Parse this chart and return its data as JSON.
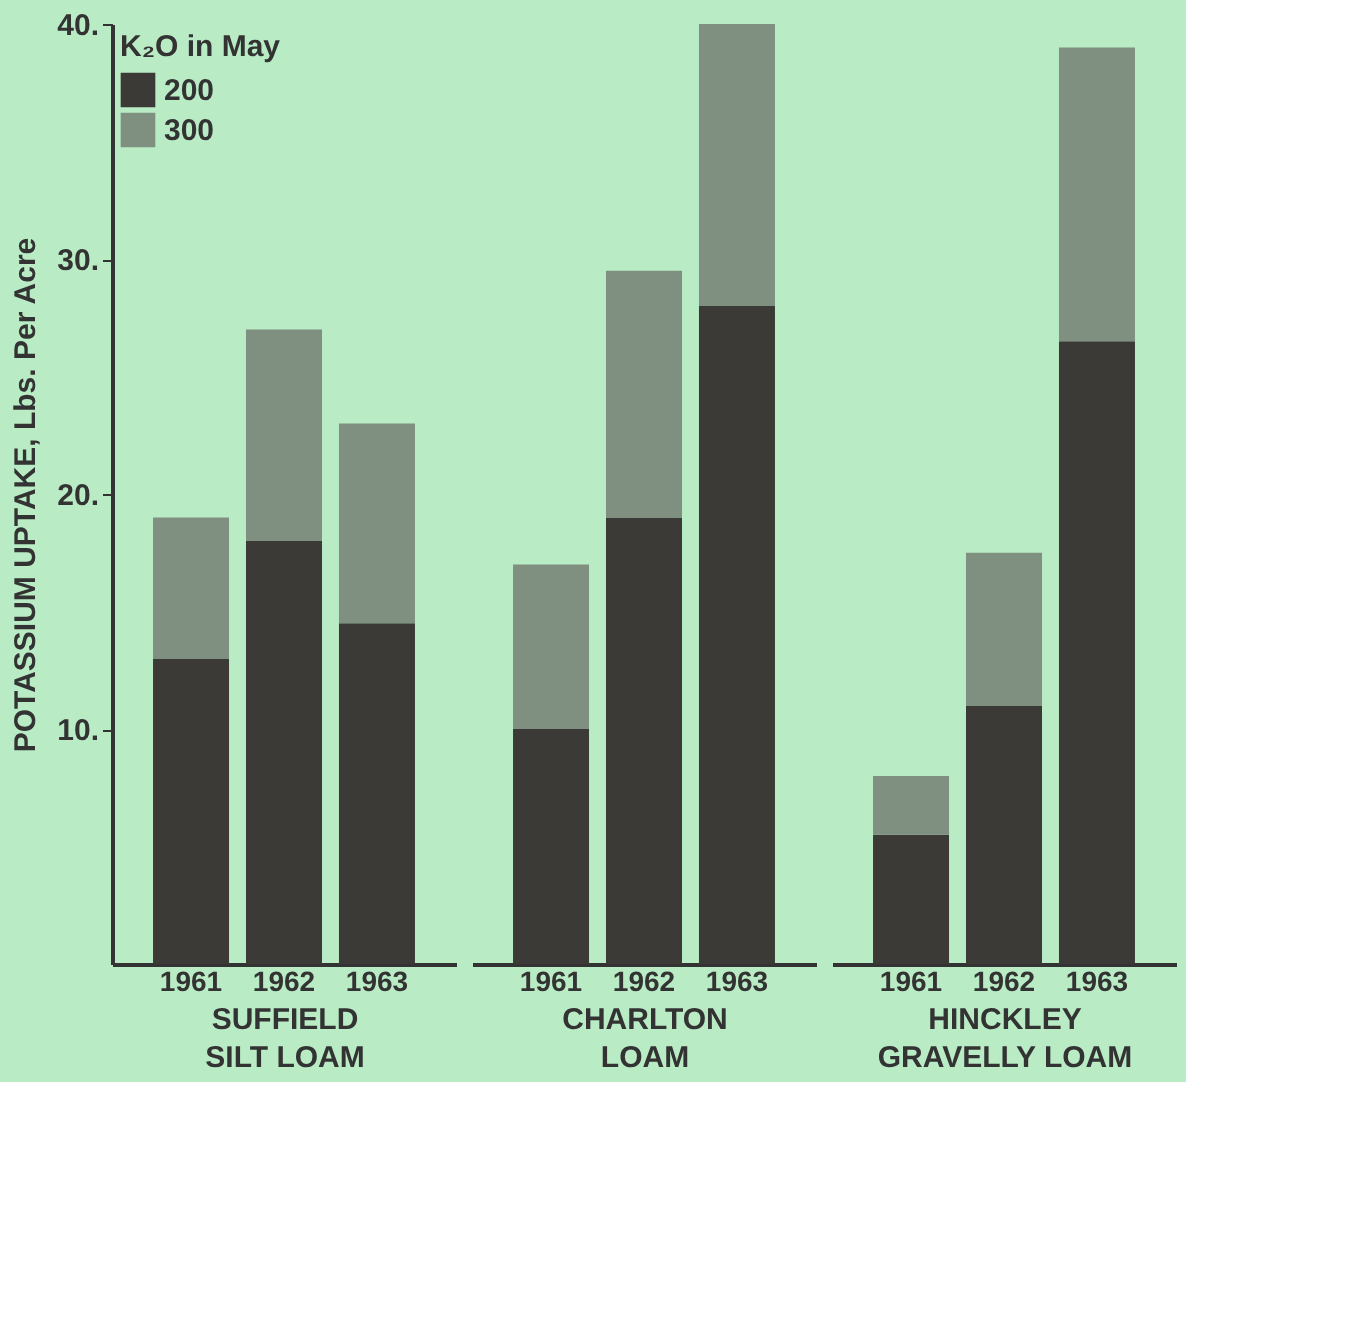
{
  "chart_data": [
    {
      "type": "bar",
      "stacked": true,
      "categories": [
        "1961",
        "1962",
        "1963"
      ],
      "xlabel": "SUFFIELD\nSILT LOAM",
      "ylabel": "POTASSIUM UPTAKE, Lbs. Per Acre",
      "legend_title": "K₂O in May",
      "legend": "top left",
      "grid": false,
      "ylim": [
        0,
        40
      ],
      "yticks": [
        {
          "value": 10,
          "label": "10."
        },
        {
          "value": 20,
          "label": "20."
        },
        {
          "value": 30,
          "label": "30."
        },
        {
          "value": 40,
          "label": "40."
        }
      ],
      "series": [
        {
          "name": "200",
          "color": "#3b3a36",
          "values": [
            13,
            18,
            14.5
          ]
        },
        {
          "name": "300",
          "color": "#7f8f80",
          "values": [
            6,
            9,
            8.5
          ]
        }
      ]
    },
    {
      "type": "bar",
      "stacked": true,
      "categories": [
        "1961",
        "1962",
        "1963"
      ],
      "xlabel": "CHARLTON\nLOAM",
      "grid": false,
      "tick_labels": "x",
      "ylim": [
        0,
        40
      ],
      "series": [
        {
          "color": "#3b3a36",
          "values": [
            10,
            19,
            28
          ]
        },
        {
          "color": "#7f8f80",
          "values": [
            7,
            10.5,
            12
          ]
        }
      ]
    },
    {
      "type": "bar",
      "stacked": true,
      "categories": [
        "1961",
        "1962",
        "1963"
      ],
      "xlabel": "HINCKLEY\nGRAVELLY LOAM",
      "grid": false,
      "tick_labels": "x",
      "ylim": [
        0,
        40
      ],
      "series": [
        {
          "color": "#3b3a36",
          "values": [
            5.5,
            11,
            26.5
          ]
        },
        {
          "color": "#7f8f80",
          "values": [
            2.5,
            6.5,
            12.5
          ]
        }
      ]
    }
  ]
}
